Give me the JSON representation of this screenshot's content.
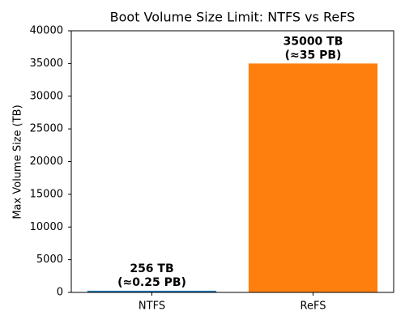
{
  "chart_data": {
    "type": "bar",
    "title": "Boot Volume Size Limit: NTFS vs ReFS",
    "ylabel": "Max Volume Size (TB)",
    "categories": [
      "NTFS",
      "ReFS"
    ],
    "values": [
      256,
      35000
    ],
    "value_labels": [
      "256 TB\n(≈0.25 PB)",
      "35000 TB\n(≈35 PB)"
    ],
    "colors": [
      "#1f77b4",
      "#ff7f0e"
    ],
    "ylim": [
      0,
      40000
    ],
    "yticks": [
      0,
      5000,
      10000,
      15000,
      20000,
      25000,
      30000,
      35000,
      40000
    ],
    "grid": false
  }
}
